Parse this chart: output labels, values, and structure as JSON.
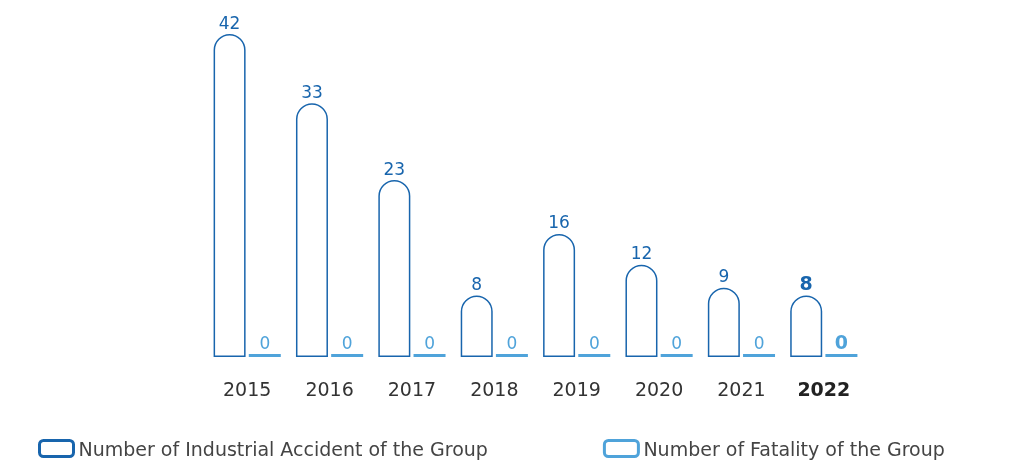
{
  "chart_data": {
    "type": "bar",
    "categories": [
      "2015",
      "2016",
      "2017",
      "2018",
      "2019",
      "2020",
      "2021",
      "2022"
    ],
    "series": [
      {
        "name": "Number of Industrial Accident of the Group",
        "color": "#1865ad",
        "values": [
          42,
          33,
          23,
          8,
          16,
          12,
          9,
          8
        ]
      },
      {
        "name": "Number of Fatality of the Group",
        "color": "#4fa3da",
        "values": [
          0,
          0,
          0,
          0,
          0,
          0,
          0,
          0
        ]
      }
    ],
    "data_labels": true,
    "legend": "bottom"
  }
}
